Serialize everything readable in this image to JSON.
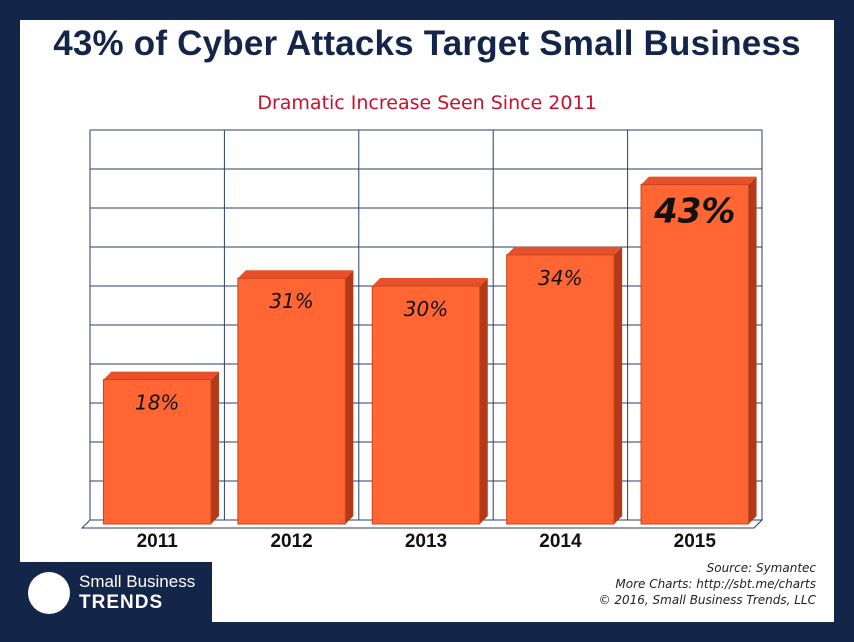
{
  "title": "43% of Cyber Attacks Target Small Business",
  "subtitle": "Dramatic Increase Seen Since 2011",
  "colors": {
    "background": "#14254a",
    "panel": "#ffffff",
    "title": "#14254a",
    "subtitle": "#c8102e",
    "bar_front": "#ff6633",
    "bar_top": "#e8502a",
    "bar_side": "#b23a18",
    "grid": "#2a3f6b"
  },
  "chart_data": {
    "type": "bar",
    "style": "3d",
    "categories": [
      "2011",
      "2012",
      "2013",
      "2014",
      "2015"
    ],
    "values": [
      18,
      31,
      30,
      34,
      43
    ],
    "data_labels": [
      "18%",
      "31%",
      "30%",
      "34%",
      "43%"
    ],
    "highlight_index": 4,
    "ylim": [
      0,
      50
    ],
    "y_tick_labels_shown": false,
    "grid": true,
    "legend": "none"
  },
  "logo": {
    "icon": "circle-logo-icon",
    "line1": "Small Business",
    "line2": "TRENDS"
  },
  "credits": {
    "source": "Source: Symantec",
    "more": "More Charts: http://sbt.me/charts",
    "copyright": "© 2016, Small Business Trends, LLC"
  }
}
